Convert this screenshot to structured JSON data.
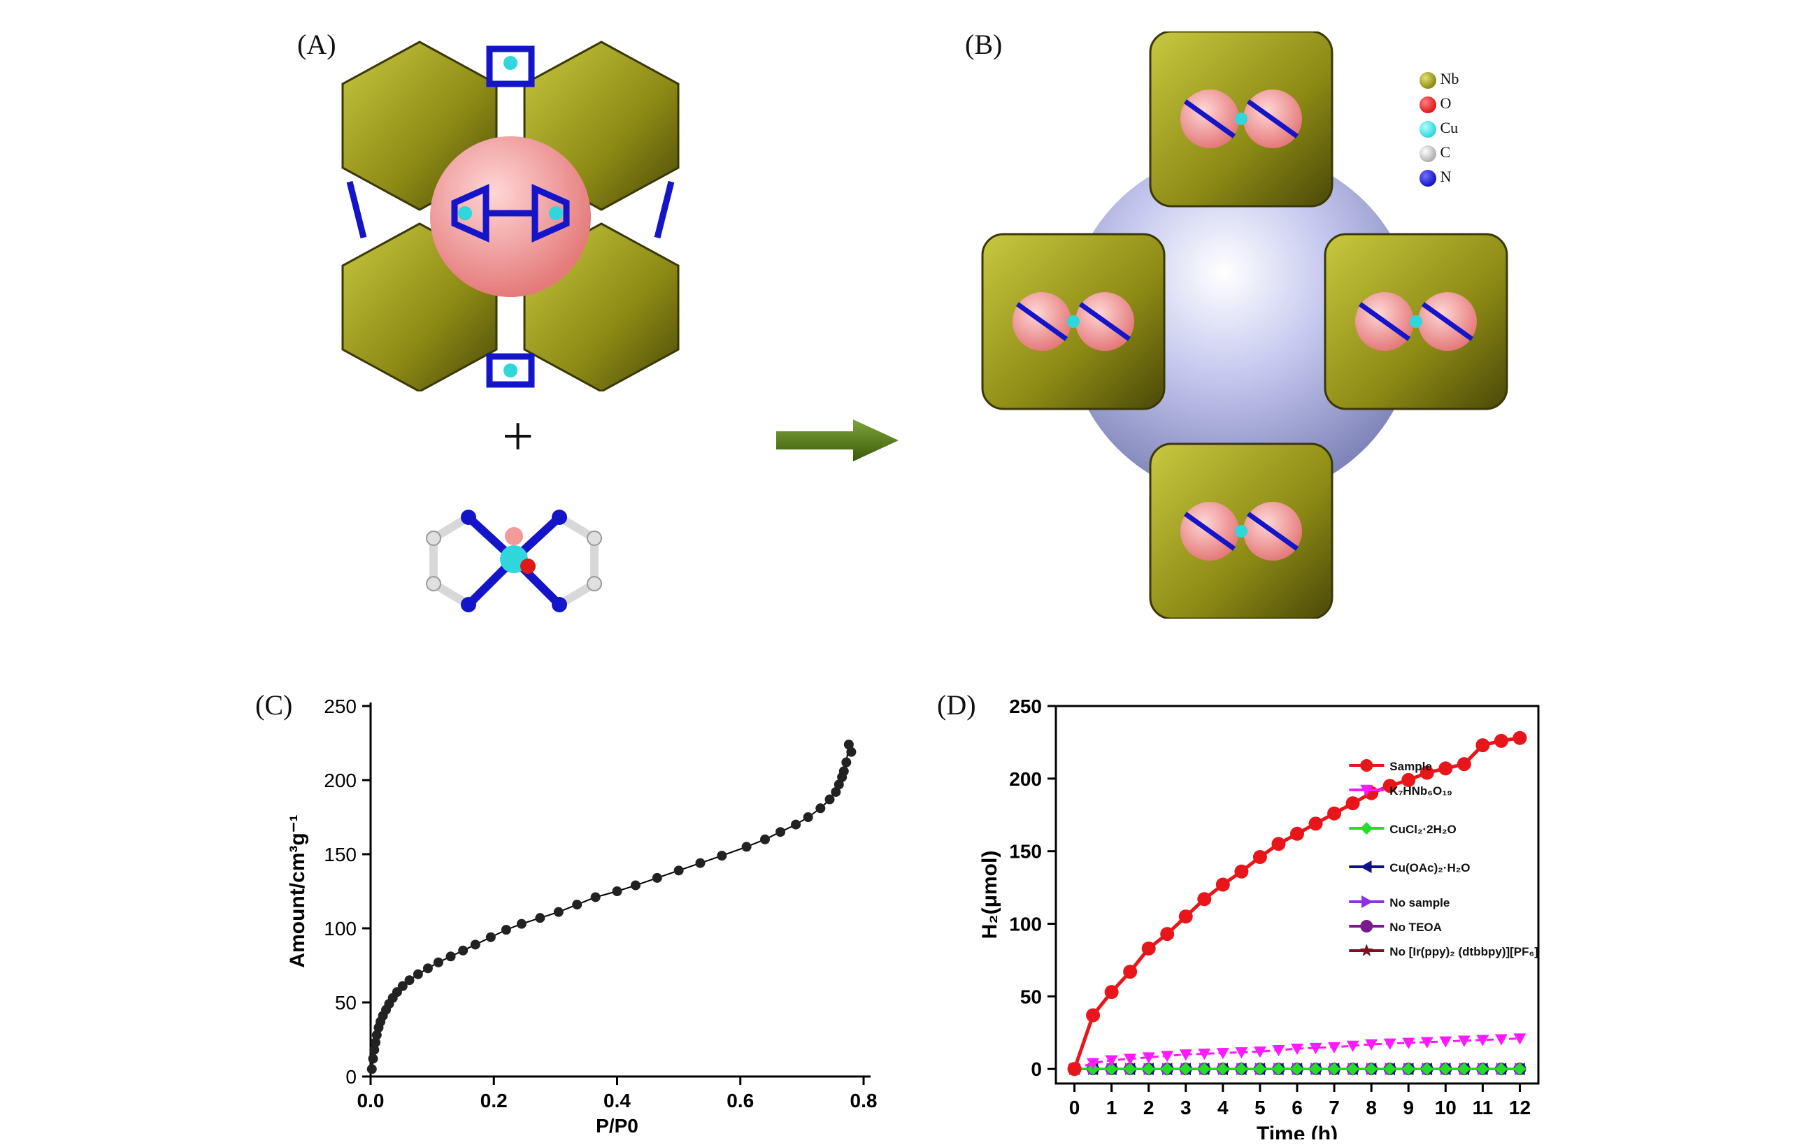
{
  "panels": {
    "A": {
      "label": "(A)"
    },
    "B": {
      "label": "(B)"
    },
    "C": {
      "label": "(C)"
    },
    "D": {
      "label": "(D)"
    }
  },
  "scheme": {
    "plus_symbol": "+",
    "element_legend": [
      {
        "symbol": "Nb",
        "color": "#8c8a14"
      },
      {
        "symbol": "O",
        "color": "#e01818"
      },
      {
        "symbol": "Cu",
        "color": "#2fd6dc"
      },
      {
        "symbol": "C",
        "color": "#d8d8d8"
      },
      {
        "symbol": "N",
        "color": "#1414c8"
      }
    ],
    "arrow_color": "#4a6b12",
    "polyhedra_color": "#9a9a1c",
    "cage_color": "#f29a9a",
    "pore_color": "#aeb3e0"
  },
  "chart_data": [
    {
      "panel": "C",
      "type": "scatter",
      "ylabel": "Amount/cm³g⁻¹",
      "xlabel": "P/P0",
      "xlim": [
        0.0,
        0.8
      ],
      "ylim": [
        0,
        250
      ],
      "xticks": [
        "0.0",
        "0.2",
        "0.4",
        "0.6",
        "0.8"
      ],
      "yticks": [
        "0",
        "50",
        "100",
        "150",
        "200",
        "250"
      ],
      "series": [
        {
          "x": [
            0.002,
            0.004,
            0.006,
            0.008,
            0.01,
            0.013,
            0.016,
            0.02,
            0.025,
            0.03,
            0.036,
            0.043,
            0.052,
            0.063,
            0.077,
            0.093,
            0.11,
            0.13,
            0.15,
            0.17,
            0.195,
            0.22,
            0.245,
            0.275,
            0.305,
            0.335,
            0.365,
            0.4,
            0.43,
            0.465,
            0.5,
            0.535,
            0.57,
            0.61,
            0.64,
            0.665,
            0.69,
            0.71,
            0.73,
            0.745,
            0.755,
            0.76,
            0.765,
            0.768,
            0.772,
            0.776,
            0.78
          ],
          "y": [
            5,
            12,
            18,
            23,
            28,
            33,
            37,
            41,
            45,
            49,
            53,
            57,
            61,
            65,
            69,
            73,
            77,
            81,
            85,
            89,
            94,
            99,
            103,
            107,
            111,
            116,
            121,
            125,
            129,
            134,
            139,
            144,
            149,
            155,
            160,
            165,
            170,
            175,
            181,
            187,
            192,
            197,
            202,
            206,
            212,
            224,
            219
          ],
          "color": "#000000"
        }
      ]
    },
    {
      "panel": "D",
      "type": "line",
      "xlabel": "Time (h)",
      "ylabel": "H₂(μmol)",
      "xlim": [
        -0.5,
        12.5
      ],
      "ylim": [
        -10,
        250
      ],
      "xticks": [
        "0",
        "1",
        "2",
        "3",
        "4",
        "5",
        "6",
        "7",
        "8",
        "9",
        "10",
        "11",
        "12"
      ],
      "yticks": [
        "0",
        "50",
        "100",
        "150",
        "200",
        "250"
      ],
      "x": [
        0,
        0.5,
        1,
        1.5,
        2,
        2.5,
        3,
        3.5,
        4,
        4.5,
        5,
        5.5,
        6,
        6.5,
        7,
        7.5,
        8,
        8.5,
        9,
        9.5,
        10,
        10.5,
        11,
        11.5,
        12
      ],
      "series": [
        {
          "name": "Sample",
          "marker": "circle",
          "color": "#e8161a",
          "values": [
            0,
            37,
            53,
            67,
            83,
            93,
            105,
            117,
            127,
            136,
            146,
            155,
            162,
            169,
            176,
            183,
            190,
            195,
            199,
            204,
            207,
            210,
            223,
            226,
            228
          ]
        },
        {
          "name": "K₇HNb₆O₁₉",
          "marker": "triangle-down",
          "color": "#ff19ff",
          "values": [
            0,
            4,
            6,
            7,
            8,
            9,
            10,
            10.5,
            11,
            11.5,
            12,
            13,
            14,
            14.5,
            15,
            16,
            17,
            17.5,
            18,
            18.5,
            19,
            19.5,
            20,
            20.5,
            21
          ]
        },
        {
          "name": "CuCl₂·2H₂O",
          "marker": "diamond",
          "color": "#20e020",
          "values": [
            0,
            0,
            0,
            0,
            0,
            0,
            0,
            0,
            0,
            0,
            0,
            0,
            0,
            0,
            0,
            0,
            0,
            0,
            0,
            0,
            0,
            0,
            0,
            0,
            0
          ]
        },
        {
          "name": "Cu(OAc)₂·H₂O",
          "marker": "triangle-left",
          "color": "#10108c",
          "values": [
            0,
            0,
            0,
            0,
            0,
            0,
            0,
            0,
            0,
            0,
            0,
            0,
            0,
            0,
            0,
            0,
            0,
            0,
            0,
            0,
            0,
            0,
            0,
            0,
            0
          ]
        },
        {
          "name": "No sample",
          "marker": "triangle-right",
          "color": "#8c30e8",
          "values": [
            0,
            0,
            0,
            0,
            0,
            0,
            0,
            0,
            0,
            0,
            0,
            0,
            0,
            0,
            0,
            0,
            0,
            0,
            0,
            0,
            0,
            0,
            0,
            0,
            0
          ]
        },
        {
          "name": "No TEOA",
          "marker": "circle",
          "color": "#7a1a8c",
          "values": [
            0,
            0,
            0,
            0,
            0,
            0,
            0,
            0,
            0,
            0,
            0,
            0,
            0,
            0,
            0,
            0,
            0,
            0,
            0,
            0,
            0,
            0,
            0,
            0,
            0
          ]
        },
        {
          "name": "No [Ir(ppy)₂ (dtbbpy)][PF₆]",
          "marker": "star",
          "color": "#7a1020",
          "values": [
            0,
            0,
            0,
            0,
            0,
            0,
            0,
            0,
            0,
            0,
            0,
            0,
            0,
            0,
            0,
            0,
            0,
            0,
            0,
            0,
            0,
            0,
            0,
            0,
            0
          ]
        }
      ],
      "legend_position": "right"
    }
  ]
}
